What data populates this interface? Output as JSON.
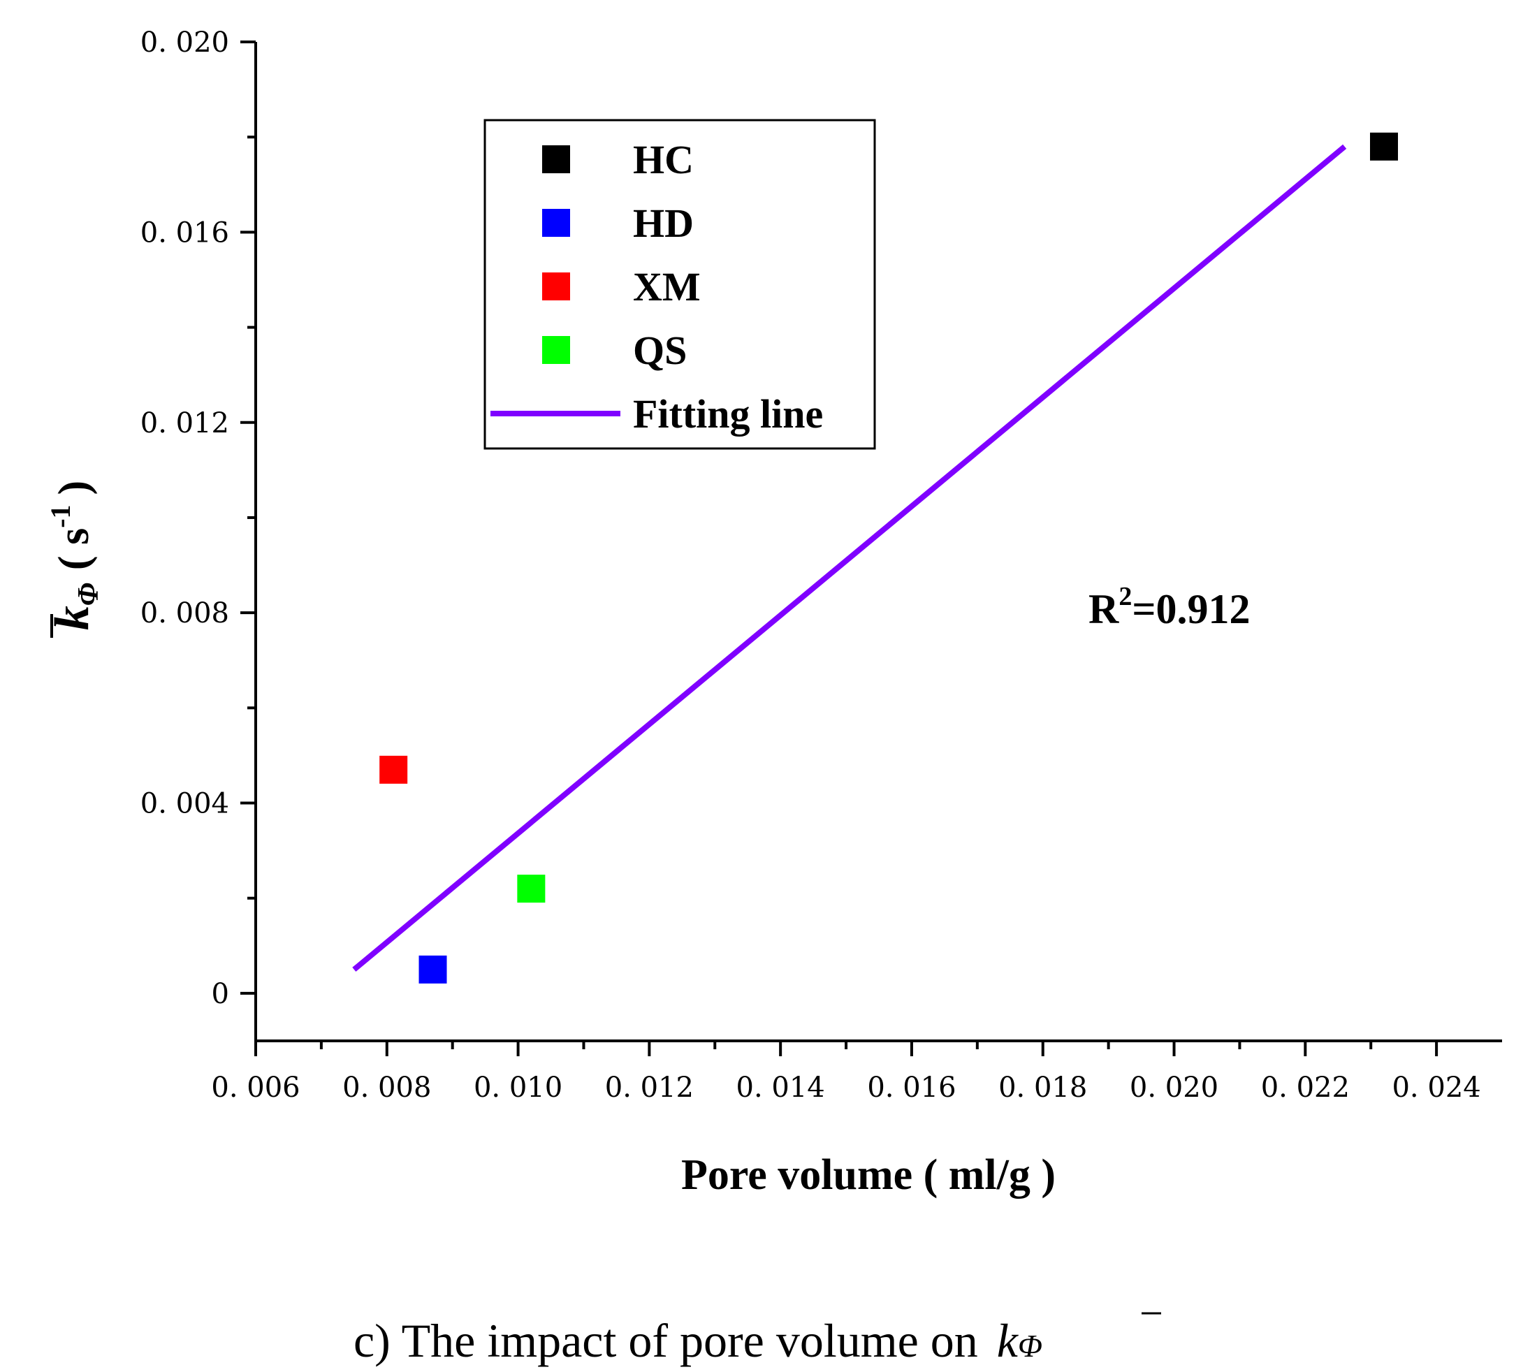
{
  "chart_data": {
    "type": "scatter",
    "title": "",
    "xlabel": "Pore volume ( ml/g )",
    "ylabel_symbol": "k",
    "ylabel_subscript": "Φ",
    "ylabel_unit_open": "( s",
    "ylabel_unit_sup": "-1",
    "ylabel_unit_close": ")",
    "xlim": [
      0.006,
      0.025
    ],
    "ylim": [
      -0.001,
      0.02
    ],
    "x_ticks": [
      0.006,
      0.008,
      0.01,
      0.012,
      0.014,
      0.016,
      0.018,
      0.02,
      0.022,
      0.024
    ],
    "x_tick_labels": [
      "0. 006",
      "0. 008",
      "0. 010",
      "0. 012",
      "0. 014",
      "0. 016",
      "0. 018",
      "0. 020",
      "0. 022",
      "0. 024"
    ],
    "y_ticks": [
      0,
      0.004,
      0.008,
      0.012,
      0.016,
      0.02
    ],
    "y_tick_labels": [
      "0",
      "0. 004",
      "0. 008",
      "0. 012",
      "0. 016",
      "0. 020"
    ],
    "series": [
      {
        "name": "HC",
        "color": "#000000",
        "x": [
          0.0232
        ],
        "y": [
          0.0178
        ]
      },
      {
        "name": "HD",
        "color": "#0000ff",
        "x": [
          0.0087
        ],
        "y": [
          0.0005
        ]
      },
      {
        "name": "XM",
        "color": "#ff0000",
        "x": [
          0.0081
        ],
        "y": [
          0.0047
        ]
      },
      {
        "name": "QS",
        "color": "#00ff00",
        "x": [
          0.0102
        ],
        "y": [
          0.0022
        ]
      }
    ],
    "fit_line": {
      "name": "Fitting line",
      "color": "#7f00ff",
      "x": [
        0.0075,
        0.0226
      ],
      "y": [
        0.0005,
        0.0178
      ]
    },
    "annotation": {
      "prefix": "R",
      "sup": "2",
      "rest": "=0.912"
    },
    "legend_position": "top-left",
    "grid": false
  },
  "caption": {
    "text": "c) The impact of pore volume on ",
    "symbol": "k",
    "subscript": "Φ"
  }
}
